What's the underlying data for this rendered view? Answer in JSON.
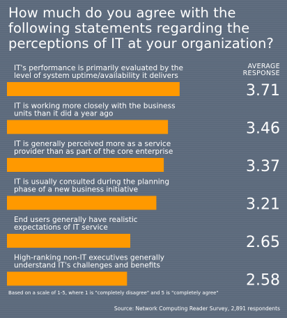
{
  "title": "How much do you agree with the following statements regarding the perceptions of IT at your organization?",
  "column_header": [
    "AVERAGE",
    "RESPONSE"
  ],
  "note": "Based on a scale of 1-5, where 1 is \"completely disagree\" and 5 is \"completely agree\"",
  "source": "Source: Network Computing Reader Survey, 2,891 respondents",
  "colors": {
    "background": "#5c6a7c",
    "bar": "#ff9900",
    "text": "#ffffff"
  },
  "chart_data": {
    "type": "bar",
    "orientation": "horizontal",
    "title": "How much do you agree with the following statements regarding the perceptions of IT at your organization?",
    "xlim": [
      1,
      5
    ],
    "grid": false,
    "legend": "none",
    "categories": [
      [
        "IT's performance is primarily evaluated by the",
        "level of system uptime/availability it delivers"
      ],
      [
        "IT is working more closely with the business",
        "units than it did a year ago"
      ],
      [
        "IT is generally perceived more as a service",
        "provider than as part of the core enterprise"
      ],
      [
        "IT is usually consulted during the planning",
        "phase of a new business initiative"
      ],
      [
        "End users generally have realistic",
        "expectations of IT service"
      ],
      [
        "High-ranking non-IT executives generally",
        "understand IT's challenges and benefits"
      ]
    ],
    "values": [
      3.71,
      3.46,
      3.37,
      3.21,
      2.65,
      2.58
    ],
    "value_labels": [
      "3.71",
      "3.46",
      "3.37",
      "3.21",
      "2.65",
      "2.58"
    ]
  }
}
